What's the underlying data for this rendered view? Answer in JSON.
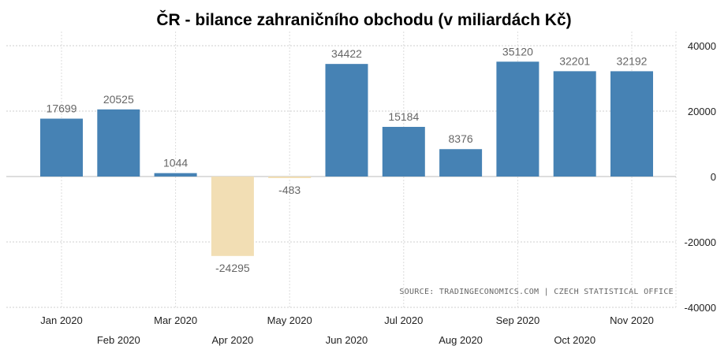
{
  "chart_data": {
    "type": "bar",
    "title": "ČR - bilance zahraničního obchodu (v miliardách Kč)",
    "categories": [
      "Jan 2020",
      "Feb 2020",
      "Mar 2020",
      "Apr 2020",
      "May 2020",
      "Jun 2020",
      "Jul 2020",
      "Aug 2020",
      "Sep 2020",
      "Oct 2020",
      "Nov 2020"
    ],
    "values": [
      17699,
      20525,
      1044,
      -24295,
      -483,
      34422,
      15184,
      8376,
      35120,
      32201,
      32192
    ],
    "ylim": [
      -40000,
      40000
    ],
    "yticks": [
      40000,
      20000,
      0,
      -20000,
      -40000
    ],
    "grid": true,
    "colors": {
      "positive": "#4682b4",
      "negative": "#f2deb4"
    },
    "source": "SOURCE: TRADINGECONOMICS.COM | CZECH STATISTICAL OFFICE"
  }
}
